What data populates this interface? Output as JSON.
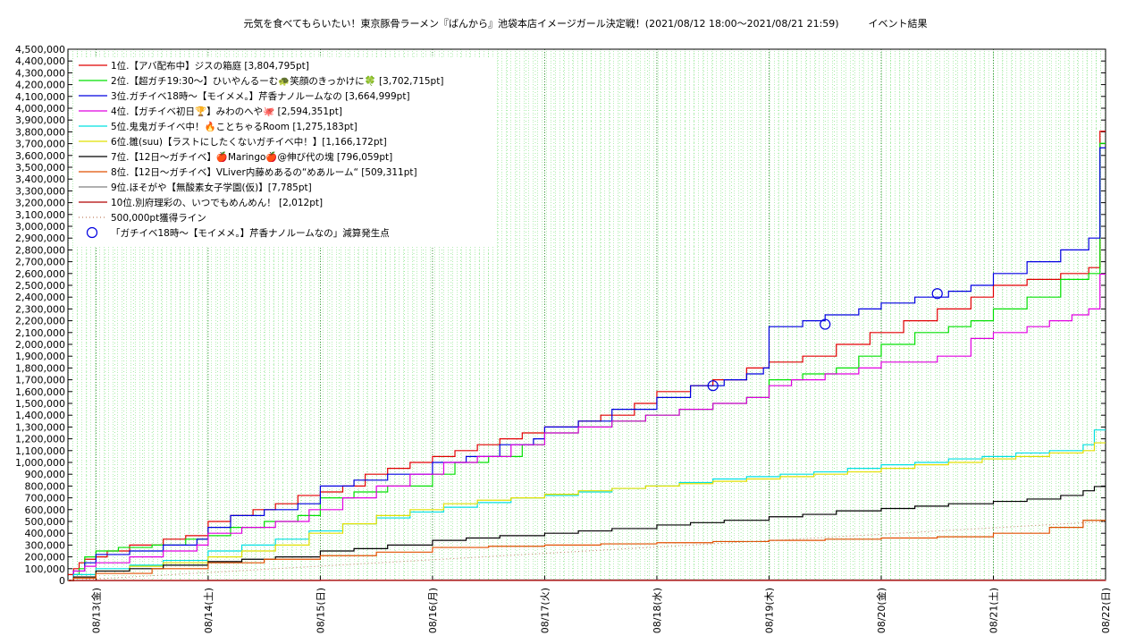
{
  "chart_data": {
    "type": "line",
    "title": "元気を食べてもらいたい！東京豚骨ラーメン『ばんから』池袋本店イメージガール決定戦！(2021/08/12 18:00〜2021/08/21 21:59)　　　イベント結果",
    "xlabel": "",
    "ylabel": "",
    "ylim": [
      0,
      4500000
    ],
    "yticks": [
      0,
      100000,
      200000,
      300000,
      400000,
      500000,
      600000,
      700000,
      800000,
      900000,
      1000000,
      1100000,
      1200000,
      1300000,
      1400000,
      1500000,
      1600000,
      1700000,
      1800000,
      1900000,
      2000000,
      2100000,
      2200000,
      2300000,
      2400000,
      2500000,
      2600000,
      2700000,
      2800000,
      2900000,
      3000000,
      3100000,
      3200000,
      3300000,
      3400000,
      3500000,
      3600000,
      3700000,
      3800000,
      3900000,
      4000000,
      4100000,
      4200000,
      4300000,
      4400000,
      4500000
    ],
    "ytick_labels": [
      "0",
      "100,000",
      "200,000",
      "300,000",
      "400,000",
      "500,000",
      "600,000",
      "700,000",
      "800,000",
      "900,000",
      "1,000,000",
      "1,100,000",
      "1,200,000",
      "1,300,000",
      "1,400,000",
      "1,500,000",
      "1,600,000",
      "1,700,000",
      "1,800,000",
      "1,900,000",
      "2,000,000",
      "2,100,000",
      "2,200,000",
      "2,300,000",
      "2,400,000",
      "2,500,000",
      "2,600,000",
      "2,700,000",
      "2,800,000",
      "2,900,000",
      "3,000,000",
      "3,100,000",
      "3,200,000",
      "3,300,000",
      "3,400,000",
      "3,500,000",
      "3,600,000",
      "3,700,000",
      "3,800,000",
      "3,900,000",
      "4,000,000",
      "4,100,000",
      "4,200,000",
      "4,300,000",
      "4,400,000",
      "4,500,000"
    ],
    "xlim": [
      -0.25,
      9.0
    ],
    "xticks": [
      0,
      1,
      2,
      3,
      4,
      5,
      6,
      7,
      8,
      9
    ],
    "xtick_labels": [
      "08/13(金)",
      "08/14(土)",
      "08/15(日)",
      "08/16(月)",
      "08/17(火)",
      "08/18(水)",
      "08/19(木)",
      "08/20(金)",
      "08/21(土)",
      "08/22(日)"
    ],
    "grid": true,
    "legend_position": "top-left",
    "series": [
      {
        "name": "1位.【アバ配布中】ジスの箱庭 [3,804,795pt]",
        "color": "#e00000",
        "style": "step",
        "x": [
          -0.25,
          -0.2,
          -0.15,
          -0.1,
          0.0,
          0.1,
          0.3,
          0.6,
          0.8,
          1.0,
          1.2,
          1.4,
          1.6,
          1.8,
          2.0,
          2.2,
          2.4,
          2.6,
          2.8,
          3.0,
          3.2,
          3.4,
          3.6,
          3.8,
          4.0,
          4.3,
          4.5,
          4.8,
          5.0,
          5.3,
          5.5,
          5.8,
          6.0,
          6.3,
          6.6,
          6.9,
          7.2,
          7.5,
          7.8,
          8.0,
          8.3,
          8.6,
          8.85,
          8.95,
          9.0
        ],
        "y": [
          50000,
          100000,
          150000,
          180000,
          200000,
          250000,
          300000,
          350000,
          380000,
          500000,
          550000,
          600000,
          650000,
          720000,
          750000,
          800000,
          900000,
          950000,
          1000000,
          1050000,
          1100000,
          1150000,
          1200000,
          1250000,
          1300000,
          1350000,
          1400000,
          1500000,
          1600000,
          1650000,
          1700000,
          1800000,
          1850000,
          1900000,
          2000000,
          2100000,
          2200000,
          2300000,
          2400000,
          2500000,
          2550000,
          2600000,
          2650000,
          3804795,
          3804795
        ]
      },
      {
        "name": "2位.【超ガチ19:30〜】ひいやんるーむ🐢笑顔のきっかけに🍀 [3,702,715pt]",
        "color": "#00e000",
        "style": "step",
        "x": [
          -0.25,
          -0.2,
          -0.15,
          -0.1,
          0.0,
          0.2,
          0.5,
          0.8,
          1.0,
          1.2,
          1.5,
          1.8,
          2.0,
          2.3,
          2.6,
          3.0,
          3.2,
          3.5,
          3.8,
          4.0,
          4.3,
          4.6,
          4.9,
          5.2,
          5.5,
          5.8,
          6.0,
          6.3,
          6.6,
          6.8,
          7.0,
          7.3,
          7.6,
          7.8,
          8.0,
          8.3,
          8.6,
          8.85,
          8.95,
          9.0
        ],
        "y": [
          0,
          50000,
          100000,
          200000,
          250000,
          280000,
          300000,
          350000,
          380000,
          450000,
          500000,
          550000,
          700000,
          750000,
          800000,
          900000,
          1000000,
          1050000,
          1150000,
          1250000,
          1300000,
          1350000,
          1400000,
          1450000,
          1500000,
          1550000,
          1700000,
          1750000,
          1800000,
          1900000,
          2000000,
          2100000,
          2150000,
          2200000,
          2300000,
          2400000,
          2550000,
          2600000,
          3702715,
          3702715
        ]
      },
      {
        "name": "3位.ガチイベ18時〜【モイメメ。】芹香ナノルームなの [3,664,999pt]",
        "color": "#0000e0",
        "style": "step",
        "x": [
          -0.25,
          -0.2,
          -0.1,
          0.0,
          0.3,
          0.6,
          0.9,
          1.0,
          1.2,
          1.5,
          1.8,
          2.0,
          2.3,
          2.6,
          3.0,
          3.3,
          3.6,
          3.9,
          4.0,
          4.3,
          4.6,
          5.0,
          5.3,
          5.6,
          5.8,
          5.95,
          6.0,
          6.3,
          6.5,
          6.8,
          7.0,
          7.3,
          7.6,
          7.8,
          8.0,
          8.3,
          8.6,
          8.85,
          8.95,
          9.0
        ],
        "y": [
          0,
          80000,
          150000,
          220000,
          250000,
          300000,
          350000,
          450000,
          550000,
          600000,
          650000,
          800000,
          850000,
          900000,
          1000000,
          1050000,
          1150000,
          1200000,
          1300000,
          1350000,
          1450000,
          1550000,
          1650000,
          1700000,
          1750000,
          1800000,
          2150000,
          2200000,
          2250000,
          2300000,
          2350000,
          2400000,
          2450000,
          2500000,
          2600000,
          2700000,
          2800000,
          2900000,
          3664999,
          3664999
        ]
      },
      {
        "name": "4位.【ガチイベ初日🏆】みわのへや🐙 [2,594,351pt]",
        "color": "#e000e0",
        "style": "step",
        "x": [
          -0.25,
          -0.2,
          -0.1,
          0.0,
          0.3,
          0.6,
          0.9,
          1.0,
          1.3,
          1.6,
          1.9,
          2.2,
          2.5,
          2.8,
          3.1,
          3.4,
          3.7,
          4.0,
          4.3,
          4.6,
          4.9,
          5.2,
          5.5,
          5.8,
          6.0,
          6.2,
          6.5,
          6.8,
          7.0,
          7.5,
          7.8,
          8.0,
          8.3,
          8.5,
          8.7,
          8.85,
          8.95,
          9.0
        ],
        "y": [
          0,
          80000,
          120000,
          150000,
          200000,
          250000,
          300000,
          400000,
          450000,
          500000,
          600000,
          700000,
          800000,
          900000,
          1000000,
          1050000,
          1150000,
          1250000,
          1300000,
          1350000,
          1400000,
          1450000,
          1500000,
          1550000,
          1650000,
          1700000,
          1750000,
          1800000,
          1850000,
          1900000,
          2050000,
          2100000,
          2150000,
          2200000,
          2250000,
          2300000,
          2594351,
          2594351
        ]
      },
      {
        "name": "5位.鬼鬼ガチイベ中！🔥ことちゃるRoom [1,275,183pt]",
        "color": "#00e0e0",
        "style": "step",
        "x": [
          -0.25,
          -0.2,
          0.0,
          0.3,
          0.6,
          1.0,
          1.3,
          1.6,
          1.9,
          2.2,
          2.5,
          2.8,
          3.1,
          3.4,
          3.7,
          4.0,
          4.3,
          4.6,
          4.9,
          5.2,
          5.5,
          5.8,
          6.1,
          6.4,
          6.7,
          7.0,
          7.3,
          7.6,
          7.9,
          8.2,
          8.5,
          8.8,
          8.9,
          9.0
        ],
        "y": [
          0,
          50000,
          100000,
          130000,
          170000,
          250000,
          300000,
          350000,
          420000,
          480000,
          530000,
          580000,
          620000,
          660000,
          700000,
          720000,
          750000,
          780000,
          800000,
          830000,
          860000,
          880000,
          900000,
          920000,
          950000,
          980000,
          1000000,
          1030000,
          1050000,
          1080000,
          1100000,
          1150000,
          1275183,
          1275183
        ]
      },
      {
        "name": "6位.雛(suu)【ラストにしたくないガチイベ中！】[1,166,172pt]",
        "color": "#e0e000",
        "style": "step",
        "x": [
          -0.25,
          -0.2,
          0.0,
          0.3,
          0.6,
          1.0,
          1.3,
          1.6,
          1.9,
          2.2,
          2.5,
          2.8,
          3.1,
          3.4,
          3.7,
          4.0,
          4.3,
          4.6,
          4.9,
          5.2,
          5.5,
          5.8,
          6.1,
          6.4,
          6.7,
          7.0,
          7.3,
          7.6,
          7.9,
          8.2,
          8.5,
          8.8,
          8.9,
          9.0
        ],
        "y": [
          0,
          30000,
          80000,
          120000,
          150000,
          200000,
          250000,
          300000,
          400000,
          480000,
          550000,
          600000,
          650000,
          680000,
          700000,
          730000,
          760000,
          780000,
          800000,
          820000,
          840000,
          860000,
          880000,
          900000,
          920000,
          950000,
          980000,
          1000000,
          1030000,
          1050000,
          1080000,
          1100000,
          1166172,
          1166172
        ]
      },
      {
        "name": "7位.【12日〜ガチイベ】🍎Maringo🍎@伸び代の塊 [796,059pt]",
        "color": "#000000",
        "style": "step",
        "x": [
          -0.25,
          -0.2,
          0.0,
          0.3,
          0.6,
          1.0,
          1.3,
          1.6,
          2.0,
          2.3,
          2.6,
          3.0,
          3.3,
          3.6,
          4.0,
          4.3,
          4.6,
          5.0,
          5.3,
          5.6,
          6.0,
          6.3,
          6.6,
          7.0,
          7.3,
          7.6,
          8.0,
          8.3,
          8.6,
          8.8,
          8.9,
          9.0
        ],
        "y": [
          0,
          30000,
          80000,
          100000,
          130000,
          160000,
          180000,
          200000,
          250000,
          270000,
          300000,
          340000,
          360000,
          380000,
          400000,
          420000,
          440000,
          470000,
          490000,
          510000,
          540000,
          560000,
          590000,
          610000,
          630000,
          650000,
          670000,
          690000,
          720000,
          760000,
          796059,
          796059
        ]
      },
      {
        "name": "8位.【12日〜ガチイベ】VLiver内藤めあるの“めあルーム“ [509,311pt]",
        "color": "#e05000",
        "style": "step",
        "x": [
          -0.25,
          -0.2,
          0.0,
          0.5,
          1.0,
          1.5,
          2.0,
          2.5,
          3.0,
          3.5,
          4.0,
          4.5,
          5.0,
          5.5,
          6.0,
          6.5,
          7.0,
          7.5,
          8.0,
          8.5,
          8.8,
          9.0
        ],
        "y": [
          0,
          20000,
          60000,
          100000,
          150000,
          180000,
          210000,
          240000,
          280000,
          290000,
          300000,
          310000,
          320000,
          330000,
          340000,
          350000,
          360000,
          370000,
          400000,
          450000,
          509311,
          509311
        ]
      },
      {
        "name": "9位.ほそがや【無酸素女子学園(仮)】[7,785pt]",
        "color": "#808080",
        "style": "step",
        "x": [
          -0.25,
          1.0,
          3.0,
          9.0
        ],
        "y": [
          0,
          2000,
          5000,
          7785
        ]
      },
      {
        "name": "10位.別府理彩の、いつでもめんめん！ [2,012pt]",
        "color": "#b00000",
        "style": "step",
        "x": [
          -0.25,
          2.0,
          9.0
        ],
        "y": [
          0,
          1000,
          2012
        ]
      },
      {
        "name": "500,000pt獲得ライン",
        "color": "#c08060",
        "style": "dotted",
        "x": [
          -0.25,
          9.0
        ],
        "y": [
          0,
          500000
        ]
      }
    ],
    "markers": {
      "name": "「ガチイベ18時〜【モイメメ。】芹香ナノルームなの」減算発生点",
      "color": "#0000e0",
      "x": [
        5.5,
        6.5,
        7.5
      ],
      "y": [
        1650000,
        2170000,
        2430000
      ]
    }
  }
}
